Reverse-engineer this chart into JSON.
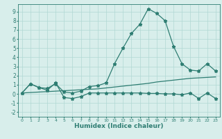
{
  "x": [
    0,
    1,
    2,
    3,
    4,
    5,
    6,
    7,
    8,
    9,
    10,
    11,
    12,
    13,
    14,
    15,
    16,
    17,
    18,
    19,
    20,
    21,
    22,
    23
  ],
  "line1": [
    0.1,
    1.1,
    0.7,
    0.6,
    1.1,
    0.2,
    0.1,
    0.3,
    0.8,
    0.9,
    1.2,
    3.3,
    5.0,
    6.6,
    7.6,
    9.3,
    8.8,
    8.0,
    5.2,
    3.3,
    2.6,
    2.5,
    3.3,
    2.5
  ],
  "line2": [
    0.1,
    1.1,
    0.7,
    0.4,
    1.2,
    -0.4,
    -0.5,
    -0.3,
    0.1,
    0.1,
    0.1,
    0.1,
    0.1,
    0.1,
    0.1,
    0.05,
    0.05,
    0.0,
    0.0,
    -0.1,
    0.1,
    -0.5,
    0.1,
    -0.5
  ],
  "line3": [
    0.1,
    0.15,
    0.2,
    0.25,
    0.3,
    0.35,
    0.4,
    0.45,
    0.5,
    0.55,
    0.65,
    0.75,
    0.85,
    0.95,
    1.05,
    1.15,
    1.3,
    1.4,
    1.5,
    1.6,
    1.7,
    1.75,
    1.8,
    1.85
  ],
  "color": "#2e7d72",
  "bg_color": "#d8eeeb",
  "grid_color": "#b0d8d4",
  "xlabel": "Humidex (Indice chaleur)",
  "xlim": [
    -0.5,
    23.5
  ],
  "ylim": [
    -2.5,
    9.8
  ],
  "yticks": [
    -2,
    -1,
    0,
    1,
    2,
    3,
    4,
    5,
    6,
    7,
    8,
    9
  ],
  "xticks": [
    0,
    1,
    2,
    3,
    4,
    5,
    6,
    7,
    8,
    9,
    10,
    11,
    12,
    13,
    14,
    15,
    16,
    17,
    18,
    19,
    20,
    21,
    22,
    23
  ],
  "markersize": 3.5,
  "linewidth": 0.9
}
